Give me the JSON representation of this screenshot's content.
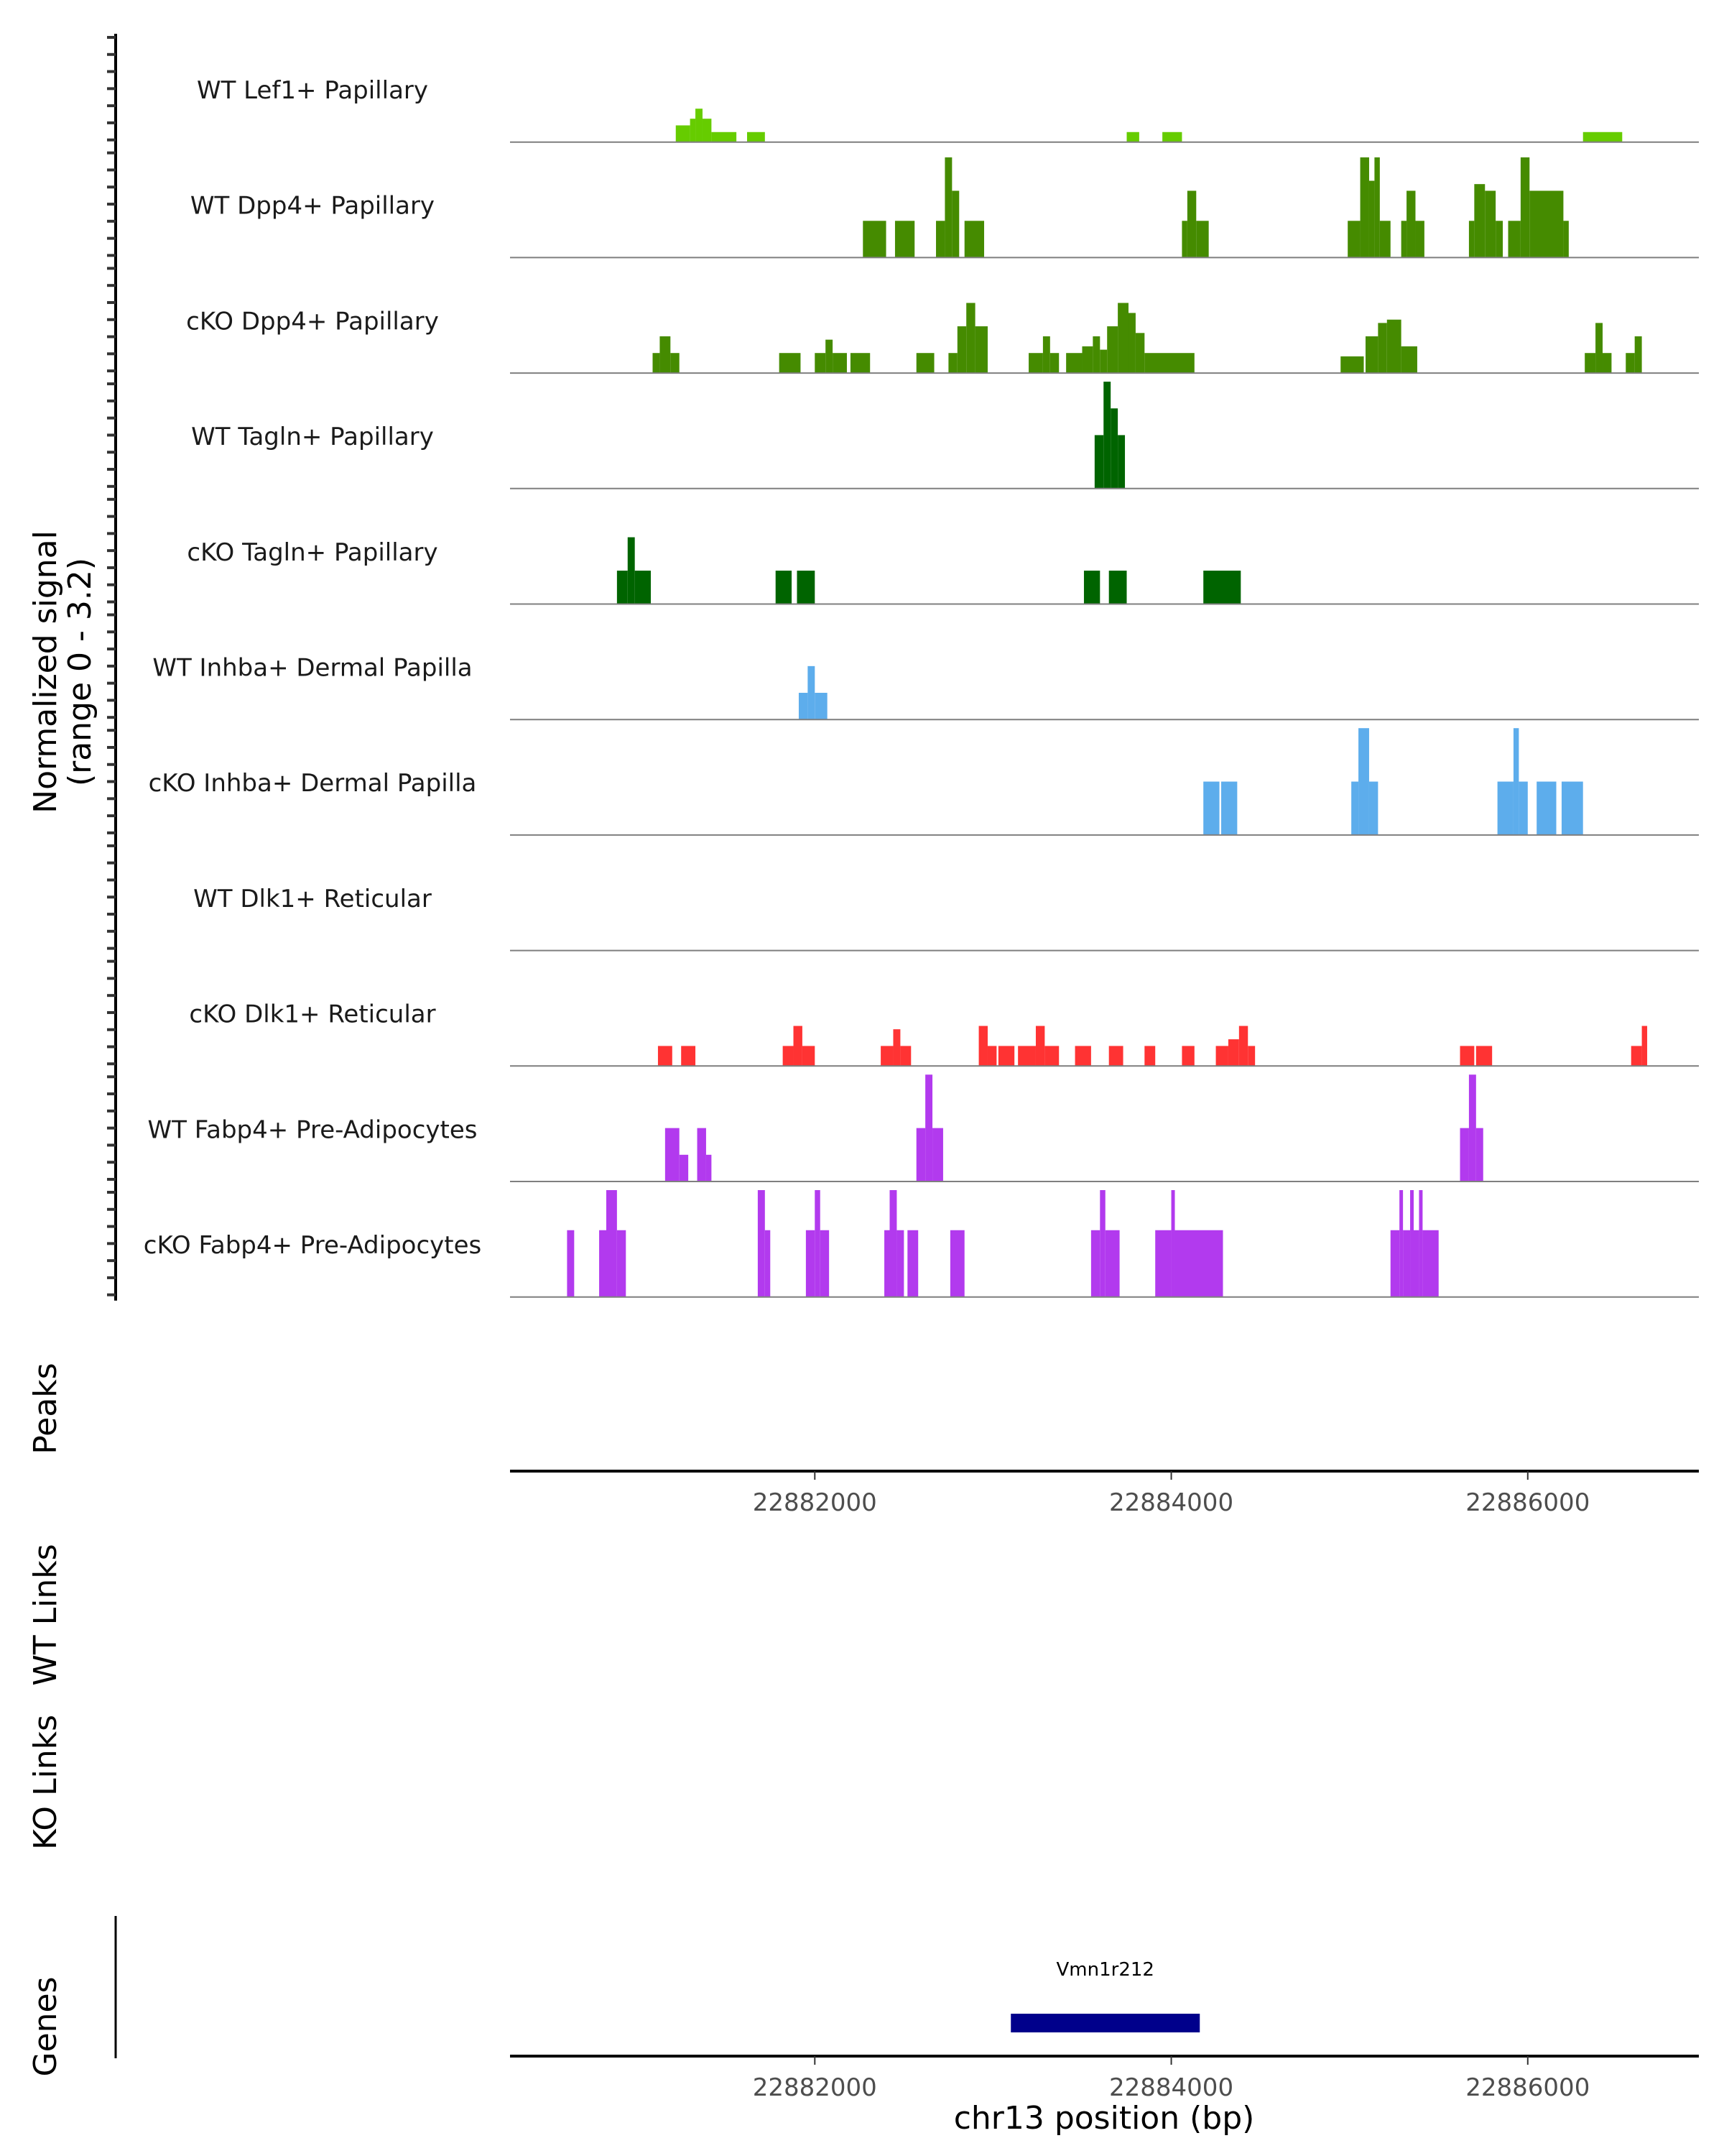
{
  "chart_data": {
    "type": "area",
    "title": "",
    "ylabel": "Normalized signal\n(range 0 - 3.2)",
    "ylabel_lines": [
      "Normalized signal",
      "(range 0 - 3.2)"
    ],
    "ylim": [
      0,
      3.2
    ],
    "xlabel": "chr13 position (bp)",
    "xlim": [
      22880290,
      22886960
    ],
    "x_ticks": [
      22882000,
      22884000,
      22886000
    ],
    "x_tick_labels": [
      "22882000",
      "22884000",
      "22886000"
    ],
    "y_ticks_per_track": 7,
    "series": [
      {
        "name": "WT Lef1+ Papillary",
        "color": "#66CC00",
        "segments": [
          [
            22881220,
            22881300,
            0.5
          ],
          [
            22881300,
            22881330,
            0.7
          ],
          [
            22881330,
            22881370,
            1.0
          ],
          [
            22881370,
            22881420,
            0.7
          ],
          [
            22881420,
            22881560,
            0.3
          ],
          [
            22881620,
            22881720,
            0.3
          ],
          [
            22883750,
            22883820,
            0.3
          ],
          [
            22883950,
            22884060,
            0.3
          ],
          [
            22886310,
            22886530,
            0.3
          ]
        ]
      },
      {
        "name": "WT Dpp4+ Papillary",
        "color": "#458B00",
        "segments": [
          [
            22882270,
            22882400,
            1.1
          ],
          [
            22882450,
            22882560,
            1.1
          ],
          [
            22882680,
            22882730,
            1.1
          ],
          [
            22882730,
            22882770,
            3.0
          ],
          [
            22882770,
            22882810,
            2.0
          ],
          [
            22882840,
            22882950,
            1.1
          ],
          [
            22884060,
            22884090,
            1.1
          ],
          [
            22884090,
            22884140,
            2.0
          ],
          [
            22884140,
            22884210,
            1.1
          ],
          [
            22884990,
            22885060,
            1.1
          ],
          [
            22885060,
            22885110,
            3.0
          ],
          [
            22885110,
            22885140,
            2.3
          ],
          [
            22885140,
            22885170,
            3.0
          ],
          [
            22885170,
            22885230,
            1.1
          ],
          [
            22885290,
            22885320,
            1.1
          ],
          [
            22885320,
            22885370,
            2.0
          ],
          [
            22885370,
            22885420,
            1.1
          ],
          [
            22885670,
            22885700,
            1.1
          ],
          [
            22885700,
            22885760,
            2.2
          ],
          [
            22885760,
            22885820,
            2.0
          ],
          [
            22885820,
            22885860,
            1.1
          ],
          [
            22885890,
            22885960,
            1.1
          ],
          [
            22885960,
            22886010,
            3.0
          ],
          [
            22886010,
            22886200,
            2.0
          ],
          [
            22886200,
            22886230,
            1.1
          ]
        ]
      },
      {
        "name": "cKO Dpp4+ Papillary",
        "color": "#458B00",
        "segments": [
          [
            22881090,
            22881130,
            0.6
          ],
          [
            22881130,
            22881190,
            1.1
          ],
          [
            22881190,
            22881240,
            0.6
          ],
          [
            22881800,
            22881920,
            0.6
          ],
          [
            22882000,
            22882060,
            0.6
          ],
          [
            22882060,
            22882100,
            1.0
          ],
          [
            22882100,
            22882180,
            0.6
          ],
          [
            22882200,
            22882310,
            0.6
          ],
          [
            22882570,
            22882670,
            0.6
          ],
          [
            22882750,
            22882800,
            0.6
          ],
          [
            22882800,
            22882850,
            1.4
          ],
          [
            22882850,
            22882900,
            2.1
          ],
          [
            22882900,
            22882970,
            1.4
          ],
          [
            22883200,
            22883280,
            0.6
          ],
          [
            22883280,
            22883320,
            1.1
          ],
          [
            22883320,
            22883370,
            0.6
          ],
          [
            22883410,
            22883500,
            0.6
          ],
          [
            22883500,
            22883560,
            0.8
          ],
          [
            22883560,
            22883600,
            1.1
          ],
          [
            22883600,
            22883640,
            0.7
          ],
          [
            22883640,
            22883700,
            1.4
          ],
          [
            22883700,
            22883760,
            2.1
          ],
          [
            22883760,
            22883800,
            1.8
          ],
          [
            22883800,
            22883850,
            1.2
          ],
          [
            22883850,
            22884130,
            0.6
          ],
          [
            22884950,
            22885080,
            0.5
          ],
          [
            22885090,
            22885160,
            1.1
          ],
          [
            22885160,
            22885210,
            1.5
          ],
          [
            22885210,
            22885290,
            1.6
          ],
          [
            22885290,
            22885380,
            0.8
          ],
          [
            22886320,
            22886380,
            0.6
          ],
          [
            22886380,
            22886420,
            1.5
          ],
          [
            22886420,
            22886470,
            0.6
          ],
          [
            22886550,
            22886600,
            0.6
          ],
          [
            22886600,
            22886640,
            1.1
          ]
        ]
      },
      {
        "name": "WT Tagln+ Papillary",
        "color": "#006400",
        "segments": [
          [
            22883570,
            22883620,
            1.6
          ],
          [
            22883620,
            22883660,
            3.2
          ],
          [
            22883660,
            22883700,
            2.4
          ],
          [
            22883700,
            22883740,
            1.6
          ]
        ]
      },
      {
        "name": "cKO Tagln+ Papillary",
        "color": "#006400",
        "segments": [
          [
            22880890,
            22880950,
            1.0
          ],
          [
            22880950,
            22880990,
            2.0
          ],
          [
            22880990,
            22881080,
            1.0
          ],
          [
            22881780,
            22881870,
            1.0
          ],
          [
            22881900,
            22882000,
            1.0
          ],
          [
            22883510,
            22883600,
            1.0
          ],
          [
            22883650,
            22883750,
            1.0
          ],
          [
            22884180,
            22884390,
            1.0
          ]
        ]
      },
      {
        "name": "WT Inhba+ Dermal Papilla",
        "color": "#5DADEC",
        "segments": [
          [
            22881910,
            22881960,
            0.8
          ],
          [
            22881960,
            22882000,
            1.6
          ],
          [
            22882000,
            22882070,
            0.8
          ]
        ]
      },
      {
        "name": "cKO Inhba+ Dermal Papilla",
        "color": "#5DADEC",
        "segments": [
          [
            22884180,
            22884270,
            1.6
          ],
          [
            22884280,
            22884370,
            1.6
          ],
          [
            22885010,
            22885050,
            1.6
          ],
          [
            22885050,
            22885110,
            3.2
          ],
          [
            22885110,
            22885160,
            1.6
          ],
          [
            22885830,
            22885920,
            1.6
          ],
          [
            22885920,
            22885950,
            3.2
          ],
          [
            22885950,
            22886000,
            1.6
          ],
          [
            22886050,
            22886160,
            1.6
          ],
          [
            22886190,
            22886310,
            1.6
          ]
        ]
      },
      {
        "name": "WT Dlk1+ Reticular",
        "color": "#FF3333",
        "segments": []
      },
      {
        "name": "cKO Dlk1+ Reticular",
        "color": "#FF3333",
        "segments": [
          [
            22881120,
            22881200,
            0.6
          ],
          [
            22881250,
            22881330,
            0.6
          ],
          [
            22881820,
            22881880,
            0.6
          ],
          [
            22881880,
            22881930,
            1.2
          ],
          [
            22881930,
            22882000,
            0.6
          ],
          [
            22882370,
            22882440,
            0.6
          ],
          [
            22882440,
            22882480,
            1.1
          ],
          [
            22882480,
            22882540,
            0.6
          ],
          [
            22882920,
            22882970,
            1.2
          ],
          [
            22882970,
            22883020,
            0.6
          ],
          [
            22883030,
            22883120,
            0.6
          ],
          [
            22883140,
            22883240,
            0.6
          ],
          [
            22883240,
            22883290,
            1.2
          ],
          [
            22883290,
            22883370,
            0.6
          ],
          [
            22883460,
            22883550,
            0.6
          ],
          [
            22883650,
            22883730,
            0.6
          ],
          [
            22883850,
            22883910,
            0.6
          ],
          [
            22884060,
            22884130,
            0.6
          ],
          [
            22884250,
            22884320,
            0.6
          ],
          [
            22884320,
            22884380,
            0.8
          ],
          [
            22884380,
            22884430,
            1.2
          ],
          [
            22884430,
            22884470,
            0.6
          ],
          [
            22885620,
            22885700,
            0.6
          ],
          [
            22885710,
            22885800,
            0.6
          ],
          [
            22886580,
            22886640,
            0.6
          ],
          [
            22886640,
            22886670,
            1.2
          ]
        ]
      },
      {
        "name": "WT Fabp4+ Pre-Adipocytes",
        "color": "#B23AEE",
        "segments": [
          [
            22881160,
            22881240,
            1.6
          ],
          [
            22881240,
            22881290,
            0.8
          ],
          [
            22881340,
            22881390,
            1.6
          ],
          [
            22881390,
            22881420,
            0.8
          ],
          [
            22882570,
            22882620,
            1.6
          ],
          [
            22882620,
            22882660,
            3.2
          ],
          [
            22882660,
            22882720,
            1.6
          ],
          [
            22885620,
            22885670,
            1.6
          ],
          [
            22885670,
            22885710,
            3.2
          ],
          [
            22885710,
            22885750,
            1.6
          ]
        ]
      },
      {
        "name": "cKO Fabp4+ Pre-Adipocytes",
        "color": "#B23AEE",
        "segments": [
          [
            22880610,
            22880650,
            2.0
          ],
          [
            22880790,
            22880830,
            2.0
          ],
          [
            22880830,
            22880890,
            4.0
          ],
          [
            22880890,
            22880940,
            2.0
          ],
          [
            22881680,
            22881720,
            4.0
          ],
          [
            22881720,
            22881750,
            2.0
          ],
          [
            22881950,
            22882000,
            2.0
          ],
          [
            22882000,
            22882030,
            4.0
          ],
          [
            22882030,
            22882080,
            2.0
          ],
          [
            22882390,
            22882420,
            2.0
          ],
          [
            22882420,
            22882460,
            4.0
          ],
          [
            22882460,
            22882500,
            2.0
          ],
          [
            22882520,
            22882580,
            2.0
          ],
          [
            22882760,
            22882840,
            2.0
          ],
          [
            22883550,
            22883600,
            2.0
          ],
          [
            22883600,
            22883630,
            4.0
          ],
          [
            22883630,
            22883710,
            2.0
          ],
          [
            22883910,
            22884000,
            2.0
          ],
          [
            22884000,
            22884020,
            4.0
          ],
          [
            22884020,
            22884290,
            2.0
          ],
          [
            22885230,
            22885280,
            2.0
          ],
          [
            22885280,
            22885300,
            4.0
          ],
          [
            22885300,
            22885340,
            2.0
          ],
          [
            22885340,
            22885360,
            4.0
          ],
          [
            22885360,
            22885390,
            2.0
          ],
          [
            22885390,
            22885410,
            4.0
          ],
          [
            22885410,
            22885500,
            2.0
          ]
        ]
      }
    ],
    "side_panels": [
      {
        "name": "Peaks",
        "label": "Peaks"
      },
      {
        "name": "WT Links",
        "label": "WT Links"
      },
      {
        "name": "KO Links",
        "label": "KO Links"
      },
      {
        "name": "Genes",
        "label": "Genes"
      }
    ],
    "genes": [
      {
        "name": "Vmn1r212",
        "start": 22883100,
        "end": 22884160,
        "color": "#00008B"
      }
    ],
    "grid": false,
    "legend": "none"
  }
}
